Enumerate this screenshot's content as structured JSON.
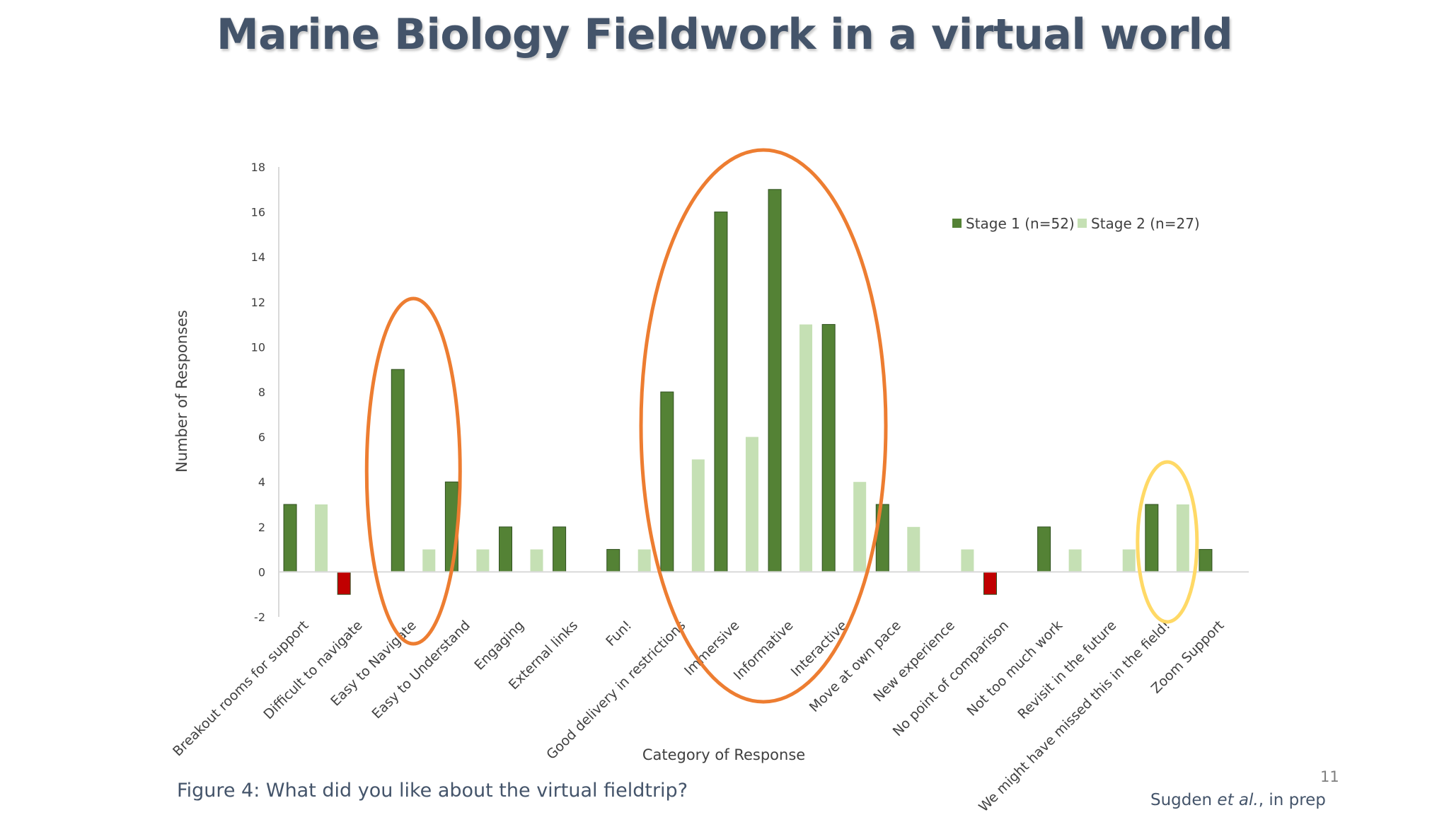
{
  "slide": {
    "title": "Marine Biology Fieldwork in a virtual world",
    "caption": "Figure 4: What did you like about the virtual fieldtrip?",
    "page_number": "11",
    "citation": {
      "author": "Sugden",
      "etal": "et al.",
      "suffix": ", in prep"
    }
  },
  "colors": {
    "stage1": "#548235",
    "stage1_negative": "#c00000",
    "stage2": "#c5e0b4",
    "highlight_orange": "#ed7d31",
    "highlight_yellow": "#ffd966",
    "axis": "#d9d9d9",
    "text": "#404040"
  },
  "chart_data": {
    "type": "bar",
    "xlabel": "Category of Response",
    "ylabel": "Number of Responses",
    "ylim": [
      -2,
      18
    ],
    "yticks": [
      -2,
      0,
      2,
      4,
      6,
      8,
      10,
      12,
      14,
      16,
      18
    ],
    "legend_position": "top-right",
    "grid": false,
    "categories": [
      "Breakout rooms for support",
      "Difficult to navigate",
      "Easy to Navigate",
      "Easy to Understand",
      "Engaging",
      "External links",
      "Fun!",
      "Good delivery in restrictions",
      "Immersive",
      "Informative",
      "Interactive",
      "Move at own pace",
      "New experience",
      "No point of comparison",
      "Not too much work",
      "Revisit in the future",
      "We might have missed this in the field!",
      "Zoom Support"
    ],
    "series": [
      {
        "name": "Stage 1 (n=52)",
        "values": [
          3,
          -1,
          9,
          4,
          2,
          2,
          1,
          8,
          16,
          17,
          11,
          3,
          0,
          -1,
          2,
          0,
          3,
          1
        ]
      },
      {
        "name": "Stage 2 (n=27)",
        "values": [
          3,
          0,
          1,
          1,
          1,
          0,
          1,
          5,
          6,
          11,
          4,
          2,
          1,
          0,
          1,
          1,
          3,
          0
        ]
      }
    ],
    "highlights": [
      {
        "color": "orange",
        "categories": [
          "Easy to Navigate"
        ]
      },
      {
        "color": "orange",
        "categories": [
          "Good delivery in restrictions",
          "Immersive",
          "Informative",
          "Interactive"
        ]
      },
      {
        "color": "yellow",
        "categories": [
          "We might have missed this in the field!"
        ]
      }
    ]
  }
}
